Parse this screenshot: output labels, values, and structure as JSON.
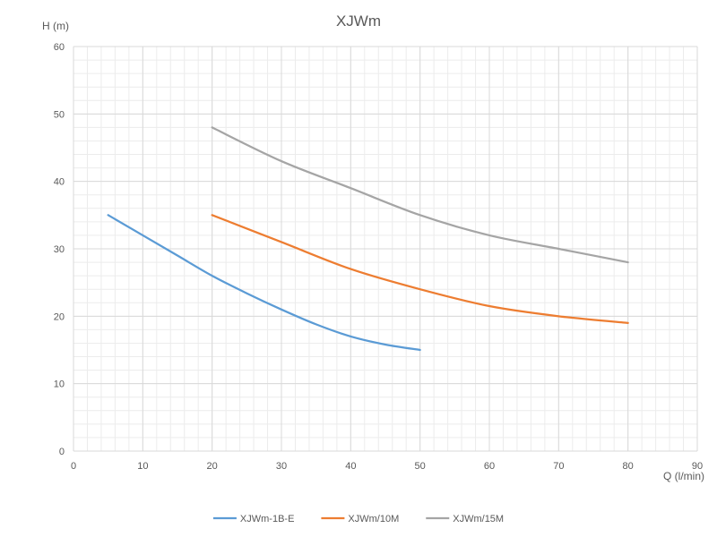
{
  "chart_data": {
    "type": "line",
    "title": "XJWm",
    "xlabel": "Q (l/min)",
    "ylabel": "H (m)",
    "xlim": [
      0,
      90
    ],
    "ylim": [
      0,
      60
    ],
    "xticks": [
      0,
      10,
      20,
      30,
      40,
      50,
      60,
      70,
      80,
      90
    ],
    "yticks": [
      0,
      10,
      20,
      30,
      40,
      50,
      60
    ],
    "minor_x_step": 2,
    "minor_y_step": 2,
    "grid": true,
    "legend_position": "bottom",
    "series": [
      {
        "name": "XJWm-1B-E",
        "color": "#5b9bd5",
        "x": [
          5,
          10,
          15,
          20,
          25,
          30,
          35,
          40,
          45,
          50
        ],
        "y": [
          35,
          32,
          29,
          26,
          23.4,
          21,
          18.8,
          17,
          15.8,
          15
        ]
      },
      {
        "name": "XJWm/10M",
        "color": "#ed7d31",
        "x": [
          20,
          30,
          40,
          50,
          60,
          70,
          80
        ],
        "y": [
          35,
          31,
          27,
          24,
          21.5,
          20,
          19
        ]
      },
      {
        "name": "XJWm/15M",
        "color": "#a5a5a5",
        "x": [
          20,
          30,
          40,
          50,
          60,
          70,
          80
        ],
        "y": [
          48,
          43,
          39,
          35,
          32,
          30,
          28
        ]
      }
    ]
  }
}
